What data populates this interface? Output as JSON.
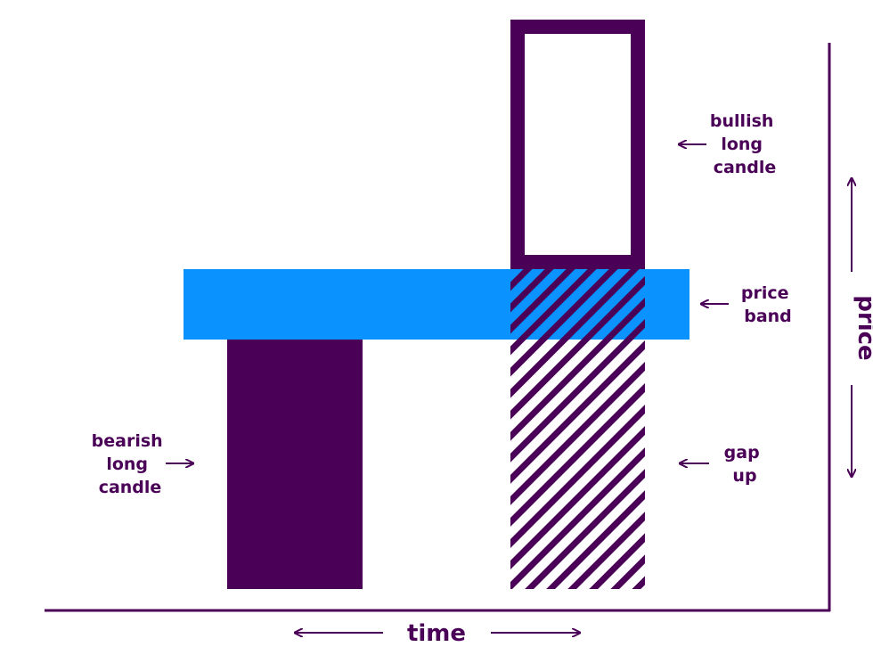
{
  "colors": {
    "purple": "#4a0057",
    "blue": "#0a93ff",
    "background": "#ffffff"
  },
  "labels": {
    "bullish": [
      "bullish",
      "long",
      "candle"
    ],
    "price_band": [
      "price",
      "band"
    ],
    "bearish": [
      "bearish",
      "long",
      "candle"
    ],
    "gap_up": [
      "gap",
      "up"
    ],
    "x_axis": "time",
    "y_axis": "price"
  }
}
